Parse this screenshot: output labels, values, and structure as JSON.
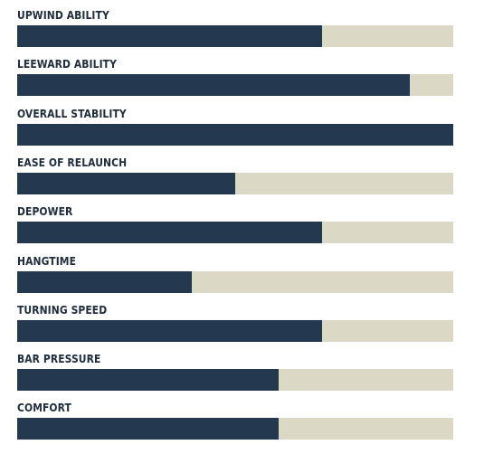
{
  "chart_data": {
    "type": "bar",
    "orientation": "horizontal",
    "categories": [
      "UPWIND ABILITY",
      "LEEWARD ABILITY",
      "OVERALL STABILITY",
      "EASE OF RELAUNCH",
      "DEPOWER",
      "HANGTIME",
      "TURNING SPEED",
      "BAR PRESSURE",
      "COMFORT"
    ],
    "values": [
      70,
      90,
      100,
      50,
      70,
      40,
      70,
      60,
      60
    ],
    "xlim": [
      0,
      100
    ],
    "grid": false,
    "legend": "none",
    "colors": {
      "fill": "#243850",
      "track": "#dcd8c6",
      "label": "#1f2d3c"
    }
  }
}
